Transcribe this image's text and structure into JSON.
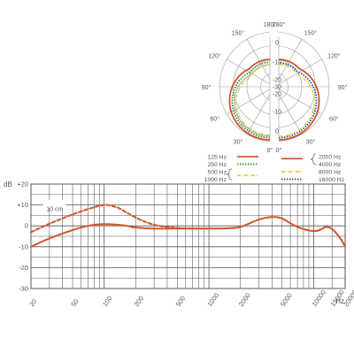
{
  "colors": {
    "grid": "#555555",
    "curve": "#d4542a",
    "green": "#2f8a2e",
    "blue": "#1f4fa0",
    "yellow": "#d6d23a",
    "circle": "#9a9a9a",
    "text": "#555555"
  },
  "chart_data": [
    {
      "type": "line",
      "title": "",
      "xlabel": "Hz",
      "ylabel": "dB",
      "xscale": "log",
      "xlim": [
        20,
        20000
      ],
      "ylim": [
        -30,
        20
      ],
      "yticks": [
        "+20",
        "+10",
        "0",
        "-10",
        "-20",
        "-30"
      ],
      "xticks": [
        "20",
        "50",
        "100",
        "200",
        "500",
        "1000",
        "2000",
        "5000",
        "10000",
        "15000",
        "20000"
      ],
      "grid": true,
      "annotations": [
        "10 cm"
      ],
      "series": [
        {
          "name": "",
          "style": "solid",
          "x": [
            20,
            30,
            50,
            70,
            100,
            150,
            200,
            300,
            500,
            1000,
            1500,
            2000,
            3000,
            4000,
            5000,
            7000,
            10000,
            12000,
            13000,
            15000,
            18000,
            20000
          ],
          "y": [
            -10,
            -6,
            -2,
            0,
            0.8,
            0.3,
            -0.8,
            -1.3,
            -1.3,
            -1.3,
            -1.2,
            -0.5,
            3,
            4.2,
            3.5,
            -0.5,
            -2.5,
            -1.5,
            -0.5,
            -1.5,
            -6,
            -10
          ]
        },
        {
          "name": "10 cm",
          "style": "dashed",
          "x": [
            20,
            30,
            50,
            70,
            100,
            130,
            150,
            200,
            300,
            500,
            800,
            1000
          ],
          "y": [
            -3,
            1,
            5.5,
            8,
            10,
            9,
            7.5,
            4,
            0.5,
            -1,
            -1.3,
            -1.3
          ]
        }
      ]
    },
    {
      "type": "polar",
      "angle_labels_left": [
        "180°",
        "150°",
        "120°",
        "90°",
        "60°",
        "30°",
        "0°"
      ],
      "angle_labels_right": [
        "180°",
        "150°",
        "120°",
        "90°",
        "60°",
        "30°",
        "0°"
      ],
      "radial_labels": [
        "0",
        "-10",
        "-20",
        "-30",
        "-20",
        "-10",
        "0"
      ],
      "legend": [
        {
          "label": "125 Hz",
          "style": "solid",
          "color": "#d4542a"
        },
        {
          "label": "250 Hz",
          "style": "dotted",
          "color": "#2f8a2e"
        },
        {
          "label": "500 Hz",
          "style": "solid",
          "color": "#aaaaaa"
        },
        {
          "label": "1000 Hz",
          "style": "dashdot",
          "color": "#d6d23a"
        },
        {
          "label": "2000 Hz",
          "style": "solid",
          "color": "#d4542a"
        },
        {
          "label": "4000 Hz",
          "style": "solid",
          "color": "#d4542a"
        },
        {
          "label": "8000 Hz",
          "style": "dashdot",
          "color": "#d6d23a"
        },
        {
          "label": "16000 Hz",
          "style": "dotted",
          "color": "#1f4fa0"
        }
      ]
    }
  ]
}
